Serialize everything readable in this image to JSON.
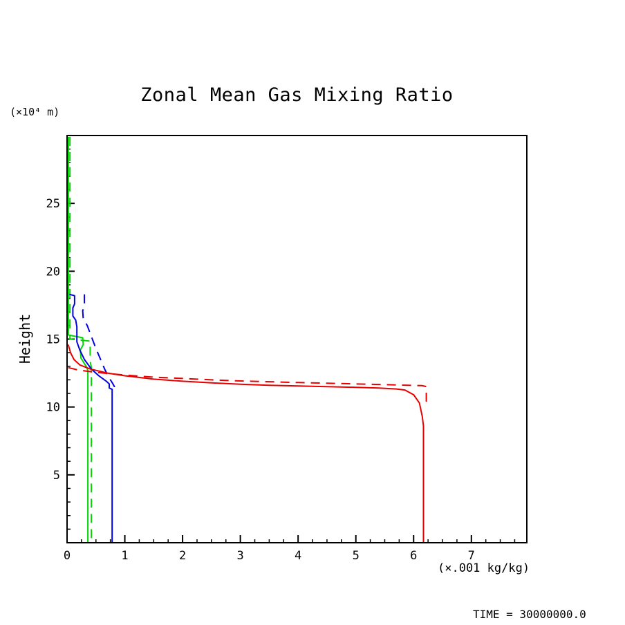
{
  "annotations": {
    "time_label": "TIME = 30000000.0"
  },
  "chart_data": {
    "type": "line",
    "title": "Zonal Mean Gas Mixing Ratio",
    "ylabel": "Height",
    "ylabel_units": "(×10⁴ m)",
    "xlabel": "(×.001 kg/kg)",
    "xlim": [
      0,
      7.96
    ],
    "ylim": [
      0,
      30
    ],
    "x_major_ticks": [
      0,
      1,
      2,
      3,
      4,
      5,
      6,
      7
    ],
    "x_minor_step": 0.25,
    "y_major_ticks": [
      5,
      10,
      15,
      20,
      25
    ],
    "y_minor_step": 1,
    "grid": false,
    "legend": "none",
    "frame_color": "#000000",
    "series": [
      {
        "name": "green-solid",
        "color": "#00d800",
        "dash": false,
        "points": [
          [
            0.025,
            29.9
          ],
          [
            0.025,
            15.3
          ],
          [
            0.27,
            15.1
          ],
          [
            0.28,
            14.6
          ],
          [
            0.23,
            14.2
          ],
          [
            0.24,
            13.6
          ],
          [
            0.33,
            13.0
          ],
          [
            0.36,
            12.7
          ],
          [
            0.36,
            0.05
          ]
        ]
      },
      {
        "name": "green-dashed",
        "color": "#00d800",
        "dash": true,
        "points": [
          [
            0.05,
            29.9
          ],
          [
            0.05,
            15.0
          ],
          [
            0.4,
            14.85
          ],
          [
            0.4,
            13.4
          ],
          [
            0.42,
            12.9
          ],
          [
            0.42,
            0.05
          ]
        ]
      },
      {
        "name": "blue-solid",
        "color": "#0000e0",
        "dash": false,
        "points": [
          [
            0.04,
            18.3
          ],
          [
            0.13,
            18.2
          ],
          [
            0.13,
            17.6
          ],
          [
            0.1,
            17.3
          ],
          [
            0.1,
            16.7
          ],
          [
            0.15,
            16.4
          ],
          [
            0.17,
            15.9
          ],
          [
            0.17,
            14.8
          ],
          [
            0.22,
            14.2
          ],
          [
            0.3,
            13.5
          ],
          [
            0.42,
            12.8
          ],
          [
            0.55,
            12.3
          ],
          [
            0.68,
            11.9
          ],
          [
            0.73,
            11.7
          ],
          [
            0.73,
            11.4
          ],
          [
            0.78,
            11.3
          ],
          [
            0.78,
            0.05
          ]
        ]
      },
      {
        "name": "blue-dashed",
        "color": "#0000e0",
        "dash": true,
        "points": [
          [
            0.3,
            18.3
          ],
          [
            0.3,
            17.4
          ],
          [
            0.27,
            17.1
          ],
          [
            0.28,
            16.5
          ],
          [
            0.35,
            16.0
          ],
          [
            0.42,
            15.2
          ],
          [
            0.5,
            14.3
          ],
          [
            0.58,
            13.5
          ],
          [
            0.65,
            12.8
          ],
          [
            0.72,
            12.2
          ],
          [
            0.78,
            11.8
          ],
          [
            0.82,
            11.5
          ],
          [
            0.82,
            11.2
          ]
        ]
      },
      {
        "name": "red-solid",
        "color": "#e60000",
        "dash": false,
        "points": [
          [
            0.02,
            14.6
          ],
          [
            0.06,
            14.0
          ],
          [
            0.12,
            13.5
          ],
          [
            0.22,
            13.1
          ],
          [
            0.4,
            12.8
          ],
          [
            0.7,
            12.5
          ],
          [
            1.0,
            12.3
          ],
          [
            1.5,
            12.05
          ],
          [
            2.0,
            11.9
          ],
          [
            2.5,
            11.78
          ],
          [
            3.0,
            11.68
          ],
          [
            3.5,
            11.6
          ],
          [
            4.0,
            11.55
          ],
          [
            4.5,
            11.5
          ],
          [
            5.0,
            11.45
          ],
          [
            5.4,
            11.4
          ],
          [
            5.7,
            11.33
          ],
          [
            5.85,
            11.25
          ],
          [
            6.0,
            10.9
          ],
          [
            6.1,
            10.3
          ],
          [
            6.15,
            9.3
          ],
          [
            6.17,
            8.6
          ],
          [
            6.17,
            0.05
          ]
        ]
      },
      {
        "name": "red-dashed",
        "color": "#e60000",
        "dash": true,
        "points": [
          [
            0.02,
            12.9
          ],
          [
            0.2,
            12.72
          ],
          [
            0.5,
            12.55
          ],
          [
            1.0,
            12.35
          ],
          [
            1.5,
            12.2
          ],
          [
            2.0,
            12.1
          ],
          [
            2.5,
            12.0
          ],
          [
            3.0,
            11.92
          ],
          [
            3.5,
            11.86
          ],
          [
            4.0,
            11.8
          ],
          [
            4.5,
            11.75
          ],
          [
            5.0,
            11.7
          ],
          [
            5.5,
            11.65
          ],
          [
            5.9,
            11.6
          ],
          [
            6.15,
            11.57
          ],
          [
            6.22,
            11.5
          ],
          [
            6.22,
            10.3
          ]
        ]
      }
    ]
  }
}
